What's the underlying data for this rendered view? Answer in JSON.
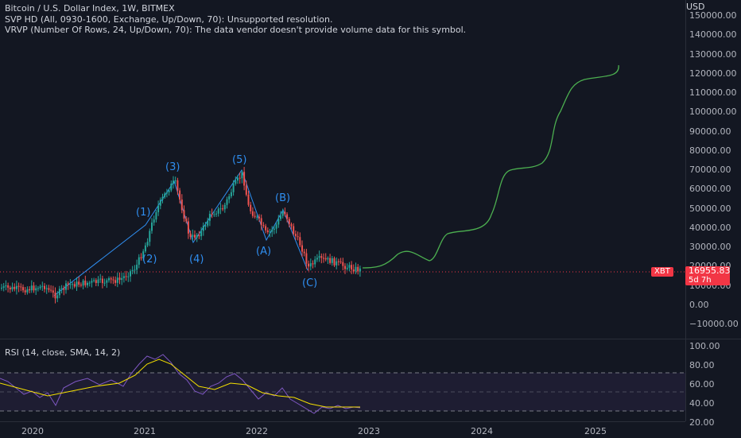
{
  "legend": {
    "line1": "Bitcoin / U.S. Dollar Index, 1W, BITMEX",
    "line2": "SVP HD (All, 0930-1600, Exchange, Up/Down, 70): Unsupported resolution.",
    "line3": "VRVP (Number Of Rows, 24, Up/Down, 70): The data vendor doesn't provide volume data for this symbol."
  },
  "rsi_label": "RSI (14, close, SMA, 14, 2)",
  "price_axis": {
    "currency": "USD",
    "ticks": [
      "150000.00",
      "140000.00",
      "130000.00",
      "120000.00",
      "110000.00",
      "100000.00",
      "90000.00",
      "80000.00",
      "70000.00",
      "60000.00",
      "50000.00",
      "40000.00",
      "30000.00",
      "20000.00",
      "10000.00",
      "0.00",
      "−10000.00"
    ]
  },
  "rsi_axis": {
    "ticks": [
      "100.00",
      "80.00",
      "60.00",
      "40.00",
      "20.00"
    ]
  },
  "time_axis": {
    "ticks": [
      "2020",
      "2021",
      "2022",
      "2023",
      "2024",
      "2025"
    ]
  },
  "current_price": {
    "symbol": "XBT",
    "value": "16955.83",
    "countdown": "5d 7h"
  },
  "wave_labels": [
    "(1)",
    "(2)",
    "(3)",
    "(4)",
    "(5)",
    "(A)",
    "(B)",
    "(C)"
  ],
  "colors": {
    "background": "#131722",
    "up": "#26a69a",
    "down": "#ef5350",
    "wave_label": "#2f8ef0",
    "projection": "#4caf50",
    "rsi_line": "#7e57c2",
    "rsi_ma": "#f5e000",
    "price_tag": "#f23645"
  }
}
